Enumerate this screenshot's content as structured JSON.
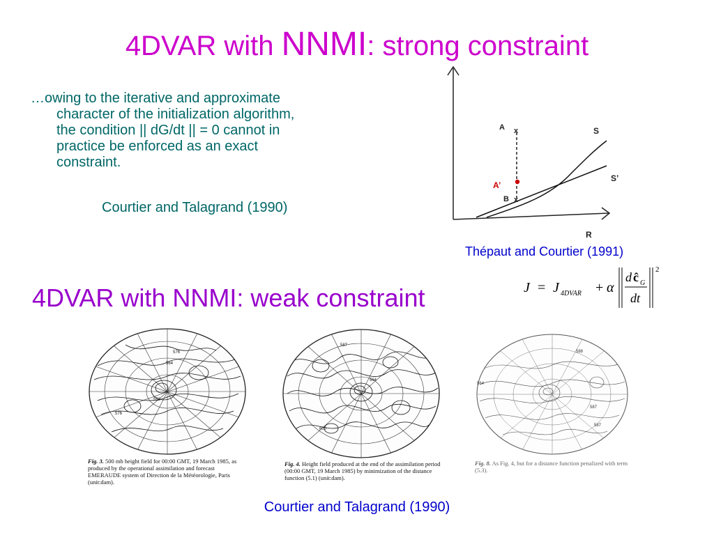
{
  "title": {
    "prefix": "4DVAR with ",
    "big": "NNMI",
    "suffix": ": strong constraint"
  },
  "bullet": {
    "line1": "…owing to the iterative and approximate",
    "line2": "character of the initialization algorithm,",
    "line3": "the condition  || dG/dt || = 0 cannot in",
    "line4": "practice be enforced as an exact",
    "line5": "constraint."
  },
  "citation_strong": "Courtier and Talagrand (1990)",
  "diagram": {
    "label_A": "A",
    "label_A_prime": "A’",
    "label_B": "B",
    "label_S": "S",
    "label_S_prime": "S’",
    "label_R": "R",
    "label_x": "x",
    "colors": {
      "axis": "#222222",
      "curve": "#111111",
      "a_prime": "#cc0000"
    }
  },
  "citation_diagram": "Thépaut and Courtier (1991)",
  "formula": {
    "J": "J",
    "equals": "=",
    "J2": "J",
    "sub": "4DVAR",
    "plus": "+",
    "alpha": "α",
    "num_d": "d",
    "num_c": "ĉ",
    "num_sub": "G",
    "den": "dt",
    "exp": "2"
  },
  "subtitle": "4DVAR with NNMI: weak constraint",
  "maps": [
    {
      "labels": [
        "576",
        "564",
        "576",
        "552"
      ],
      "caption_fig": "Fig. 3.",
      "caption_text": "500 mb height field for 00:00 GMT, 19 March 1985, as produced by the operational assimilation and forecast EMERAUDE system of Direction de la Météorologie, Paris (unit:dam)."
    },
    {
      "labels": [
        "587",
        "564",
        "600"
      ],
      "caption_fig": "Fig. 4.",
      "caption_text": "Height field produced at the end of the assimilation period (00:00 GMT, 19 March 1985) by minimization of the distance function (5.1) (unit:dam)."
    },
    {
      "labels": [
        "564",
        "588",
        "587",
        "587"
      ],
      "caption_fig": "Fig. 8.",
      "caption_text": "As Fig. 4, but for a distance function penalized with term (5.3)."
    }
  ],
  "citation_bottom": "Courtier and Talagrand (1990)"
}
